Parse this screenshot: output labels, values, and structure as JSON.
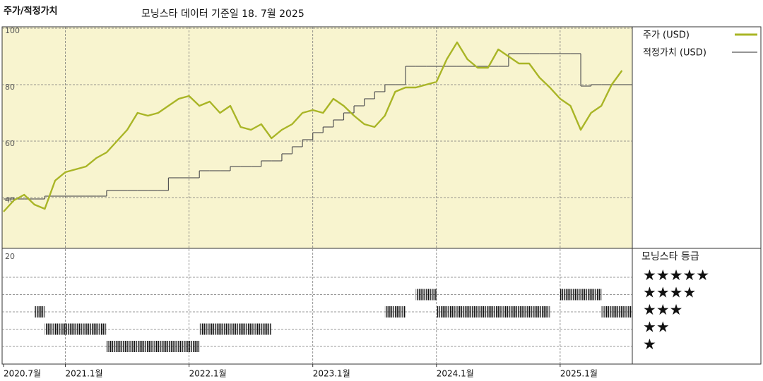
{
  "header": {
    "title": "주가/적정가치",
    "subtitle": "모닝스타 데이터 기준일 18. 7월 2025"
  },
  "chart_data": {
    "type": "line",
    "x": [
      "2020-07",
      "2020-08",
      "2020-09",
      "2020-10",
      "2020-11",
      "2020-12",
      "2021-01",
      "2021-02",
      "2021-03",
      "2021-04",
      "2021-05",
      "2021-06",
      "2021-07",
      "2021-08",
      "2021-09",
      "2021-10",
      "2021-11",
      "2021-12",
      "2022-01",
      "2022-02",
      "2022-03",
      "2022-04",
      "2022-05",
      "2022-06",
      "2022-07",
      "2022-08",
      "2022-09",
      "2022-10",
      "2022-11",
      "2022-12",
      "2023-01",
      "2023-02",
      "2023-03",
      "2023-04",
      "2023-05",
      "2023-06",
      "2023-07",
      "2023-08",
      "2023-09",
      "2023-10",
      "2023-11",
      "2023-12",
      "2024-01",
      "2024-02",
      "2024-03",
      "2024-04",
      "2024-05",
      "2024-06",
      "2024-07",
      "2024-08",
      "2024-09",
      "2024-10",
      "2024-11",
      "2024-12",
      "2025-01",
      "2025-02",
      "2025-03",
      "2025-04",
      "2025-05",
      "2025-06",
      "2025-07"
    ],
    "xlim": [
      "2020-07",
      "2025-08"
    ],
    "xticks": [
      {
        "value": "2020-07",
        "label": "2020.7월"
      },
      {
        "value": "2021-01",
        "label": "2021.1월"
      },
      {
        "value": "2022-01",
        "label": "2022.1월"
      },
      {
        "value": "2023-01",
        "label": "2023.1월"
      },
      {
        "value": "2024-01",
        "label": "2024.1월"
      },
      {
        "value": "2025-01",
        "label": "2025.1월"
      }
    ],
    "ylim": [
      22,
      100.5
    ],
    "yticks": [
      40,
      60,
      80,
      100
    ],
    "grid": true,
    "series": [
      {
        "name": "주가 (USD)",
        "color": "#a9b526",
        "values": [
          35,
          39,
          41,
          37.5,
          36,
          46,
          49,
          50,
          51,
          54,
          56,
          60,
          64,
          70,
          69,
          70,
          72.5,
          75,
          76,
          72.5,
          74,
          70,
          72.5,
          65,
          64,
          66,
          61,
          64,
          66,
          70,
          71,
          70,
          75,
          72.5,
          69,
          66,
          65,
          69,
          77.5,
          79,
          79,
          80,
          81,
          89,
          95,
          89,
          86,
          86,
          92.5,
          90,
          87.5,
          87.5,
          82.5,
          79,
          75,
          72.5,
          64,
          70,
          72.5,
          80,
          85
        ]
      },
      {
        "name": "적정가치 (USD)",
        "color": "#555555",
        "step": true,
        "values": [
          39.5,
          39.5,
          39.5,
          39.5,
          40.5,
          40.5,
          40.5,
          40.5,
          40.5,
          40.5,
          42.5,
          42.5,
          42.5,
          42.5,
          42.5,
          42.5,
          47,
          47,
          47,
          49.5,
          49.5,
          49.5,
          51,
          51,
          51,
          53,
          53,
          55.5,
          58,
          60.5,
          63,
          65,
          67.5,
          70,
          72.5,
          75,
          77.5,
          80,
          80,
          86.5,
          86.5,
          86.5,
          86.5,
          86.5,
          86.5,
          86.5,
          86.5,
          86.5,
          86.5,
          91,
          91,
          91,
          91,
          91,
          91,
          91,
          79.5,
          80,
          80,
          80,
          80
        ]
      }
    ]
  },
  "ratings": {
    "title": "모닝스타 등급",
    "corner_label": "20",
    "levels": [
      5,
      4,
      3,
      2,
      1
    ],
    "level_labels": [
      "★★★★★",
      "★★★★",
      "★★★",
      "★★",
      "★"
    ],
    "segments": [
      {
        "start": "2020-10",
        "end": "2020-10",
        "stars": 3
      },
      {
        "start": "2020-11",
        "end": "2021-04",
        "stars": 2
      },
      {
        "start": "2021-05",
        "end": "2022-01",
        "stars": 1
      },
      {
        "start": "2022-02",
        "end": "2022-08",
        "stars": 2
      },
      {
        "start": "2023-08",
        "end": "2023-09",
        "stars": 3
      },
      {
        "start": "2023-11",
        "end": "2023-12",
        "stars": 4
      },
      {
        "start": "2024-01",
        "end": "2024-11",
        "stars": 3
      },
      {
        "start": "2025-01",
        "end": "2025-04",
        "stars": 4
      },
      {
        "start": "2025-05",
        "end": "2025-07",
        "stars": 3
      }
    ]
  }
}
